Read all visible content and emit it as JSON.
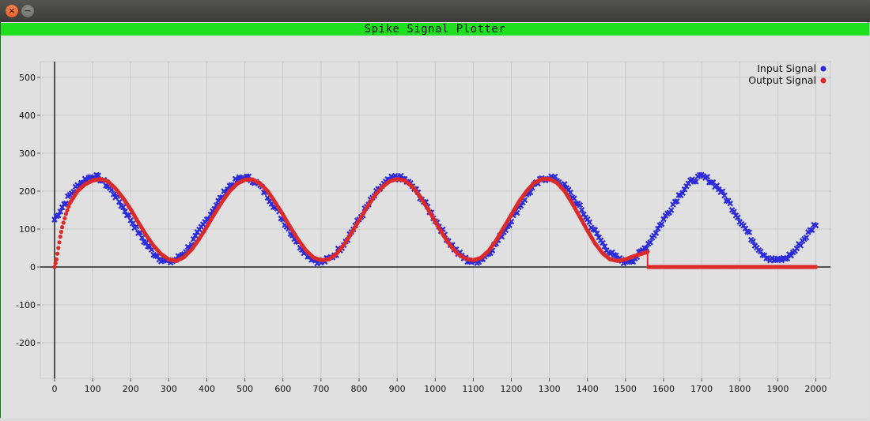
{
  "window": {
    "close_icon": "close-icon",
    "minimize_icon": "minimize-icon",
    "close_glyph": "×",
    "minimize_glyph": "−"
  },
  "chart_data": {
    "type": "scatter",
    "title": "Spike Signal Plotter",
    "xlabel": "",
    "ylabel": "",
    "xlim": [
      -35,
      2040
    ],
    "ylim": [
      -290,
      545
    ],
    "xticks": [
      0,
      100,
      200,
      300,
      400,
      500,
      600,
      700,
      800,
      900,
      1000,
      1100,
      1200,
      1300,
      1400,
      1500,
      1600,
      1700,
      1800,
      1900,
      2000
    ],
    "yticks": [
      -200,
      -100,
      0,
      100,
      200,
      300,
      400,
      500
    ],
    "grid": true,
    "legend_position": "top-right",
    "colors": {
      "input": "#2b2bdc",
      "output": "#dc2a2a",
      "title_bar": "#1fe01f",
      "grid": "#c8c8c8",
      "axis": "#222222"
    },
    "series": [
      {
        "name": "Input Signal",
        "marker": "x",
        "x": [
          0,
          20,
          40,
          60,
          80,
          100,
          120,
          140,
          160,
          180,
          200,
          220,
          240,
          260,
          280,
          300,
          320,
          340,
          360,
          380,
          400,
          420,
          440,
          460,
          480,
          500,
          520,
          540,
          560,
          580,
          600,
          620,
          640,
          660,
          680,
          700,
          720,
          740,
          760,
          780,
          800,
          820,
          840,
          860,
          880,
          900,
          920,
          940,
          960,
          980,
          1000,
          1020,
          1040,
          1060,
          1080,
          1100,
          1120,
          1140,
          1160,
          1180,
          1200,
          1220,
          1240,
          1260,
          1280,
          1300,
          1320,
          1340,
          1360,
          1380,
          1400,
          1420,
          1440,
          1460,
          1480,
          1500,
          1520,
          1540,
          1560,
          1580,
          1600,
          1620,
          1640,
          1660,
          1680,
          1700,
          1720,
          1740,
          1760,
          1780,
          1800,
          1820,
          1840,
          1860,
          1880,
          1900,
          1920,
          1940,
          1960,
          1980,
          2000
        ],
        "y": [
          125,
          158,
          189,
          214,
          230,
          240,
          233,
          214,
          188,
          157,
          125,
          93,
          62,
          37,
          21,
          12,
          20,
          37,
          62,
          93,
          125,
          157,
          187,
          213,
          230,
          237,
          230,
          213,
          187,
          157,
          125,
          93,
          62,
          37,
          20,
          12,
          20,
          37,
          62,
          93,
          125,
          157,
          188,
          213,
          230,
          238,
          230,
          213,
          187,
          157,
          125,
          93,
          62,
          37,
          20,
          12,
          20,
          37,
          62,
          93,
          125,
          157,
          188,
          213,
          230,
          238,
          230,
          213,
          187,
          157,
          125,
          93,
          62,
          37,
          20,
          14,
          20,
          37,
          62,
          93,
          125,
          157,
          188,
          214,
          230,
          238,
          230,
          213,
          187,
          157,
          125,
          93,
          62,
          37,
          20,
          17,
          22,
          37,
          62,
          88,
          115
        ]
      },
      {
        "name": "Output Signal",
        "marker": "o",
        "x": [
          0,
          5,
          10,
          15,
          20,
          30,
          40,
          60,
          80,
          100,
          120,
          140,
          160,
          180,
          200,
          220,
          240,
          260,
          280,
          300,
          320,
          340,
          360,
          380,
          400,
          420,
          440,
          460,
          480,
          500,
          520,
          540,
          560,
          580,
          600,
          620,
          640,
          660,
          680,
          700,
          720,
          740,
          760,
          780,
          800,
          820,
          840,
          860,
          880,
          900,
          920,
          940,
          960,
          980,
          1000,
          1020,
          1040,
          1060,
          1080,
          1100,
          1120,
          1140,
          1160,
          1180,
          1200,
          1220,
          1240,
          1260,
          1280,
          1300,
          1320,
          1340,
          1360,
          1380,
          1400,
          1420,
          1440,
          1460,
          1480,
          1500,
          1520,
          1540,
          1558,
          1560,
          1600,
          1700,
          1800,
          1900,
          2000
        ],
        "y": [
          0,
          20,
          50,
          80,
          105,
          140,
          168,
          200,
          218,
          228,
          232,
          226,
          207,
          182,
          152,
          118,
          85,
          56,
          34,
          20,
          16,
          26,
          46,
          74,
          106,
          140,
          172,
          200,
          220,
          230,
          231,
          220,
          200,
          170,
          138,
          104,
          72,
          44,
          25,
          18,
          20,
          34,
          58,
          90,
          123,
          156,
          187,
          210,
          226,
          232,
          228,
          212,
          186,
          154,
          120,
          86,
          56,
          34,
          22,
          18,
          24,
          42,
          70,
          104,
          138,
          172,
          200,
          222,
          232,
          232,
          222,
          200,
          168,
          132,
          96,
          62,
          36,
          20,
          16,
          20,
          28,
          34,
          40,
          0,
          0,
          0,
          0,
          0,
          0
        ]
      }
    ]
  }
}
